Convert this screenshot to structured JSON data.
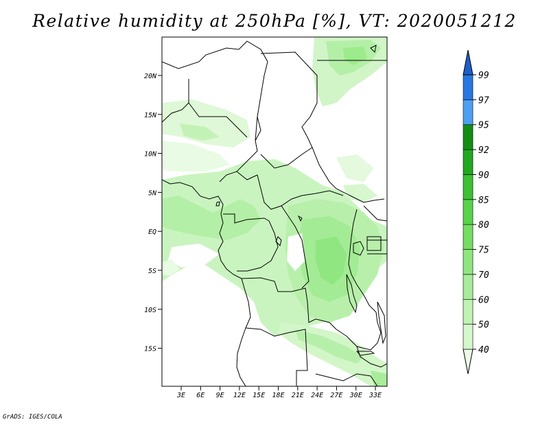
{
  "title": "Relative humidity at 250hPa [%], VT: 2020051212",
  "credit": "GrADS: IGES/COLA",
  "map": {
    "lat_labels": [
      "20N",
      "15N",
      "10N",
      "5N",
      "EQ",
      "5S",
      "10S",
      "15S"
    ],
    "lon_labels": [
      "3E",
      "6E",
      "9E",
      "12E",
      "15E",
      "18E",
      "21E",
      "24E",
      "27E",
      "30E",
      "33E"
    ],
    "lon_range": [
      0,
      35
    ],
    "lat_range": [
      -20,
      25
    ]
  },
  "colorbar": {
    "levels": [
      "40",
      "50",
      "60",
      "70",
      "75",
      "80",
      "85",
      "90",
      "92",
      "95",
      "97",
      "99"
    ],
    "colors": [
      "#ecfbe8",
      "#d4f7cc",
      "#bff2b3",
      "#a6ec99",
      "#8fe680",
      "#74dd62",
      "#58d34a",
      "#3cc034",
      "#22a820",
      "#138e13",
      "#4f9ff0",
      "#2877e0",
      "#1f5fc8"
    ]
  }
}
